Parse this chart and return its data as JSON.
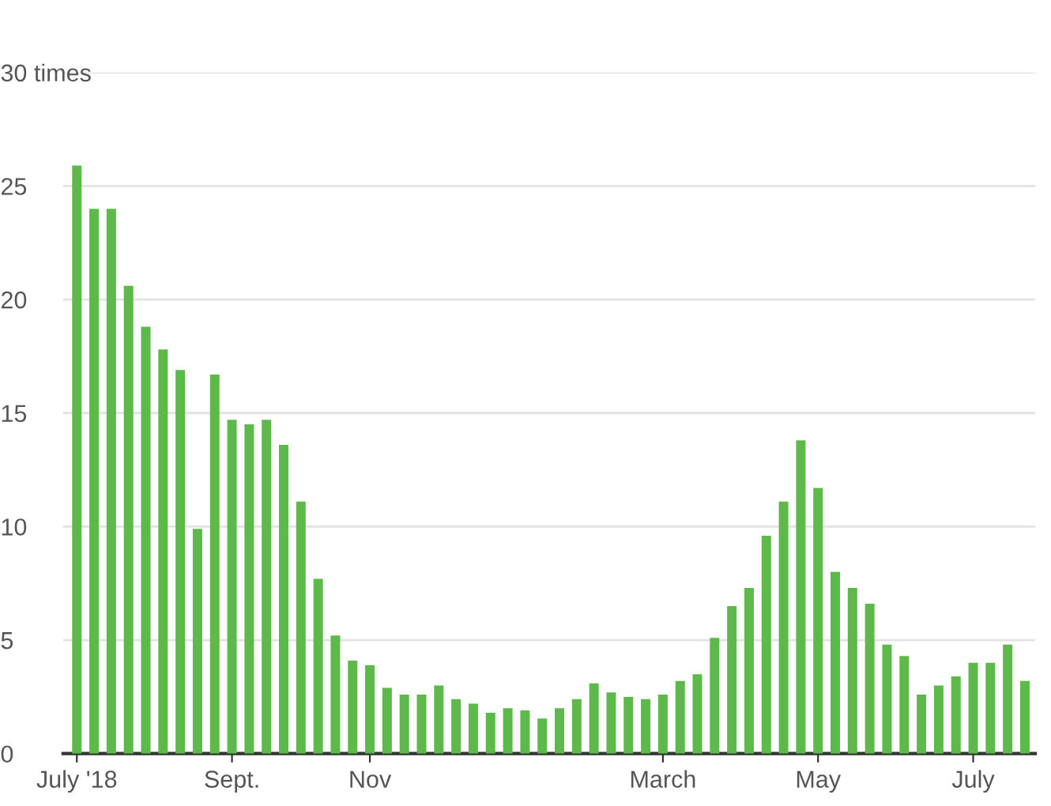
{
  "chart_data": {
    "type": "bar",
    "categories": [
      "July '18",
      null,
      null,
      null,
      null,
      null,
      null,
      null,
      null,
      "Sept.",
      null,
      null,
      null,
      null,
      null,
      null,
      null,
      "Nov",
      null,
      null,
      null,
      null,
      null,
      null,
      null,
      null,
      null,
      null,
      null,
      null,
      null,
      null,
      null,
      null,
      "March",
      null,
      null,
      null,
      null,
      null,
      null,
      null,
      null,
      "May",
      null,
      null,
      null,
      null,
      null,
      null,
      null,
      null,
      "July",
      null,
      null,
      null
    ],
    "values": [
      25.9,
      24.0,
      24.0,
      20.6,
      18.8,
      17.8,
      16.9,
      9.9,
      16.7,
      14.7,
      14.5,
      14.7,
      13.6,
      11.1,
      7.7,
      5.2,
      4.1,
      3.9,
      2.9,
      2.6,
      2.6,
      3.0,
      2.4,
      2.2,
      1.8,
      2.0,
      1.9,
      1.55,
      2.0,
      2.4,
      3.1,
      2.7,
      2.5,
      2.4,
      2.6,
      3.2,
      3.5,
      5.1,
      6.5,
      7.3,
      9.6,
      11.1,
      13.8,
      11.7,
      8.0,
      7.3,
      6.6,
      4.8,
      4.3,
      2.6,
      3.0,
      3.4,
      4.0,
      4.0,
      4.8,
      3.2
    ],
    "color": "#5cb94a",
    "ylim": [
      0,
      30
    ],
    "yticks": [
      0,
      5,
      10,
      15,
      20,
      25,
      {
        "value": 30,
        "label": "30 times"
      }
    ],
    "grid": "y"
  }
}
